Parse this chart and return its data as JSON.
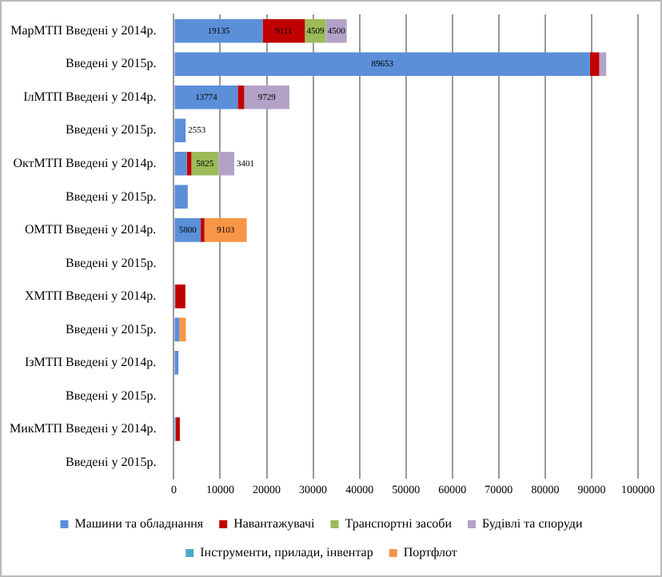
{
  "chart_data": {
    "type": "bar",
    "orientation": "horizontal",
    "stacked": true,
    "categories": [
      "МарМТП Введені у 2014р.",
      "Введені у 2015р.",
      "ІлМТП Введені у 2014р.",
      "Введені у 2015р.",
      "ОктМТП Введені у 2014р.",
      "Введені у 2015р.",
      "ОМТП Введені у 2014р.",
      "Введені у 2015р.",
      "ХМТП Введені у 2014р.",
      "Введені у 2015р.",
      "ІзМТП Введені у 2014р.",
      "Введені у 2015р.",
      "МикМТП Введені у 2014р.",
      "Введені у 2015р."
    ],
    "series": [
      {
        "name": "Машини та обладнання",
        "color": "#5b8fd8",
        "values": [
          19135,
          89653,
          13774,
          2553,
          2800,
          3000,
          5800,
          null,
          300,
          1200,
          1000,
          null,
          400,
          null
        ],
        "value_labels": [
          "19135",
          "89653",
          "13774",
          "2553",
          null,
          null,
          "5800",
          null,
          null,
          null,
          null,
          null,
          null,
          null
        ]
      },
      {
        "name": "Навантажувачі",
        "color": "#c00000",
        "values": [
          9111,
          2000,
          1400,
          null,
          1000,
          null,
          800,
          null,
          2200,
          null,
          null,
          null,
          900,
          null
        ],
        "value_labels": [
          "9111",
          null,
          null,
          null,
          null,
          null,
          null,
          null,
          null,
          null,
          null,
          null,
          null,
          null
        ]
      },
      {
        "name": "Транспортні засоби",
        "color": "#9bbb59",
        "values": [
          4509,
          null,
          null,
          null,
          5825,
          null,
          null,
          null,
          null,
          null,
          null,
          null,
          null,
          null
        ],
        "value_labels": [
          "4509",
          null,
          null,
          null,
          "5825",
          null,
          null,
          null,
          null,
          null,
          null,
          null,
          null,
          null
        ]
      },
      {
        "name": "Будівлі та споруди",
        "color": "#b3a2c7",
        "values": [
          4500,
          1500,
          9729,
          null,
          3401,
          null,
          null,
          null,
          null,
          null,
          null,
          null,
          null,
          null
        ],
        "value_labels": [
          "4500",
          null,
          "9729",
          null,
          "3401",
          null,
          null,
          null,
          null,
          null,
          null,
          null,
          null,
          null
        ]
      },
      {
        "name": "Інструменти, прилади, інвентар",
        "color": "#4bacc6",
        "values": [
          null,
          null,
          null,
          null,
          null,
          null,
          null,
          null,
          null,
          null,
          null,
          null,
          null,
          null
        ]
      },
      {
        "name": "Портфлот",
        "color": "#f79646",
        "values": [
          null,
          null,
          null,
          null,
          null,
          null,
          9103,
          null,
          null,
          1400,
          null,
          null,
          null,
          null
        ],
        "value_labels": [
          null,
          null,
          null,
          null,
          null,
          null,
          "9103",
          null,
          null,
          null,
          null,
          null,
          null,
          null
        ]
      }
    ],
    "xlim": [
      0,
      100000
    ],
    "xticks": [
      0,
      10000,
      20000,
      30000,
      40000,
      50000,
      60000,
      70000,
      80000,
      90000,
      100000
    ],
    "grid": "x",
    "legend": "bottom"
  }
}
